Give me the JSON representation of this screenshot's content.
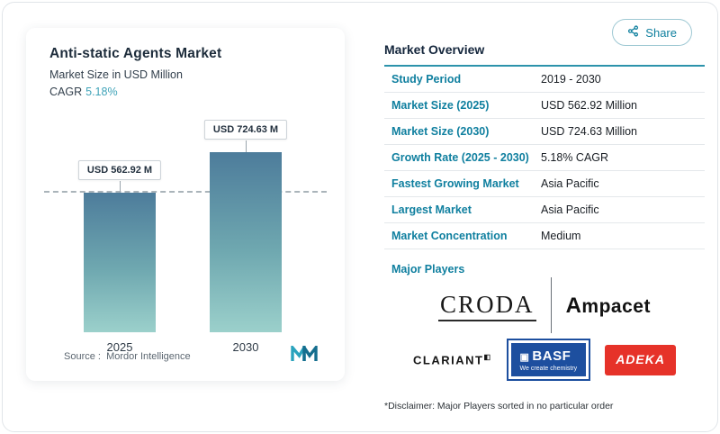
{
  "share": {
    "label": "Share"
  },
  "left_card": {
    "title": "Anti-static Agents Market",
    "subtitle": "Market Size in USD Million",
    "cagr_label": "CAGR",
    "cagr_value": "5.18%",
    "source_prefix": "Source :",
    "source_name": "Mordor Intelligence"
  },
  "chart_data": {
    "type": "bar",
    "title": "Anti-static Agents Market",
    "subtitle": "Market Size in USD Million",
    "categories": [
      "2025",
      "2030"
    ],
    "values": [
      562.92,
      724.63
    ],
    "bar_labels": [
      "USD 562.92 M",
      "USD 724.63 M"
    ],
    "xlabel": "",
    "ylabel": "Market Size in USD Million",
    "ylim": [
      0,
      724.63
    ],
    "grid": false,
    "legend": false,
    "dashline_value": 562.92,
    "bar_gradient": [
      "#4d7c9b",
      "#9bd0cb"
    ]
  },
  "overview": {
    "title": "Market Overview",
    "rows": [
      {
        "label": "Study Period",
        "value": "2019 - 2030"
      },
      {
        "label": "Market Size (2025)",
        "value": "USD 562.92 Million"
      },
      {
        "label": "Market Size (2030)",
        "value": "USD 724.63 Million"
      },
      {
        "label": "Growth Rate (2025 - 2030)",
        "value": "5.18% CAGR"
      },
      {
        "label": "Fastest Growing Market",
        "value": "Asia Pacific"
      },
      {
        "label": "Largest Market",
        "value": "Asia Pacific"
      },
      {
        "label": "Market Concentration",
        "value": "Medium"
      }
    ],
    "major_players_label": "Major Players",
    "players": {
      "croda": "CRODA",
      "ampacet": "Ampacet",
      "clariant": "CLARIANT",
      "basf": "BASF",
      "basf_tagline": "We create chemistry",
      "adeka": "ADEKA"
    },
    "disclaimer": "*Disclaimer: Major Players sorted in no particular order"
  },
  "icons": {
    "share": "share-icon",
    "mordor_logo": "mordor-intelligence-logo"
  },
  "colors": {
    "accent_teal": "#0e7f9e",
    "rule_teal": "#2c93ab",
    "cagr_teal": "#3fa3b8",
    "basf_blue": "#1d4f9f",
    "adeka_red": "#e63229",
    "bar_top": "#4d7c9b",
    "bar_bottom": "#9bd0cb"
  }
}
